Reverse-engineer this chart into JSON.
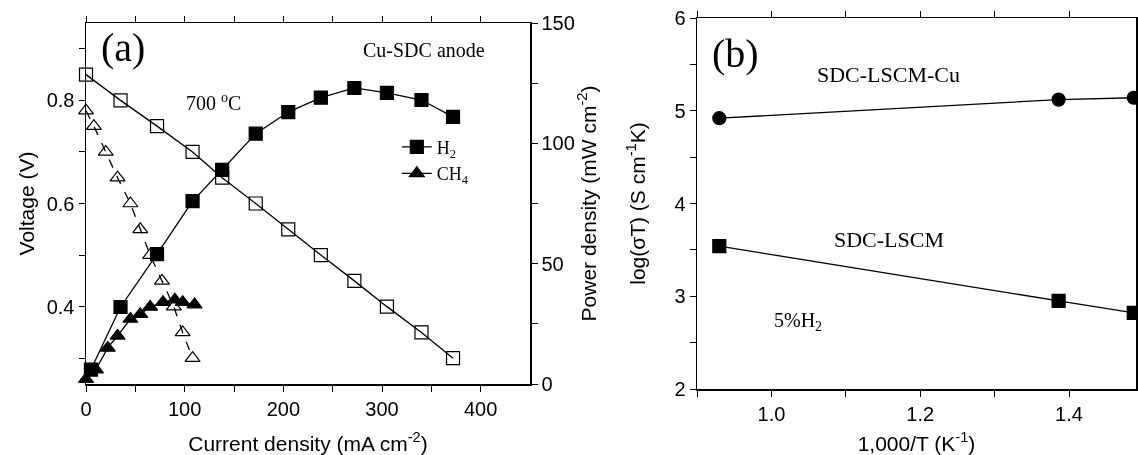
{
  "chart_data": [
    {
      "type": "line",
      "xlabel": "Current density (mA cm$^{-2}$)",
      "ylabel": "Voltage (V)",
      "y2label": "Power density (mW cm$^{-2}$)",
      "annotations": [
        "(a)",
        "700 $^{o}$C",
        "Cu-SDC anode"
      ],
      "xlim": [
        0,
        450
      ],
      "xticks": [
        0,
        {
          "value": 50,
          "label": null
        },
        100,
        {
          "value": 150,
          "label": null
        },
        200,
        {
          "value": 250,
          "label": null
        },
        300,
        {
          "value": 350,
          "label": null
        },
        400
      ],
      "ylim": [
        0.25,
        0.95
      ],
      "yticks": [
        {
          "value": 0.3,
          "label": null
        },
        0.4,
        {
          "value": 0.5,
          "label": null
        },
        0.6,
        {
          "value": 0.7,
          "label": null
        },
        0.8,
        {
          "value": 0.9,
          "label": null
        }
      ],
      "y2lim": [
        0,
        150
      ],
      "y2ticks": [
        0,
        {
          "value": 25,
          "label": null
        },
        50,
        {
          "value": 75,
          "label": null
        },
        100,
        {
          "value": 125,
          "label": null
        },
        150
      ],
      "grid": false,
      "legend": "right",
      "series": [
        {
          "color": "#000000",
          "marker": "square-open",
          "line_style": "solid",
          "axis": "y",
          "x": [
            0,
            35,
            72,
            108,
            138,
            172,
            205,
            238,
            272,
            305,
            340,
            372
          ],
          "values": [
            0.85,
            0.8,
            0.75,
            0.7,
            0.65,
            0.6,
            0.55,
            0.5,
            0.45,
            0.4,
            0.35,
            0.3
          ]
        },
        {
          "color": "#000000",
          "marker": "triangle-open",
          "line_style": "dashed",
          "axis": "y",
          "x": [
            0,
            8,
            20,
            32,
            45,
            55,
            65,
            77,
            89,
            98,
            108
          ],
          "values": [
            0.78,
            0.75,
            0.7,
            0.65,
            0.6,
            0.55,
            0.5,
            0.45,
            0.4,
            0.35,
            0.3
          ]
        },
        {
          "name": "H$_{2}$",
          "color": "#000000",
          "marker": "square",
          "line_style": "solid",
          "axis": "y2",
          "x": [
            5,
            35,
            72,
            108,
            138,
            172,
            205,
            238,
            272,
            305,
            340,
            372
          ],
          "values": [
            6,
            32,
            54,
            76,
            89,
            104,
            113,
            119,
            123,
            121,
            118,
            111
          ]
        },
        {
          "name": "CH$_{4}$",
          "color": "#000000",
          "marker": "triangle",
          "line_style": "solid",
          "axis": "y2",
          "x": [
            0,
            10,
            22,
            32,
            45,
            55,
            65,
            78,
            90,
            98,
            110
          ],
          "values": [
            2,
            6,
            15,
            20,
            27,
            29,
            32,
            34,
            35,
            34,
            33
          ]
        }
      ]
    },
    {
      "type": "line",
      "xlabel": "1,000/T (K$^{-1}$)",
      "ylabel": "log(σT) (S cm$^{-1}$K)",
      "annotations": [
        "(b)",
        "5%H$_{2}$"
      ],
      "xlim": [
        0.9,
        1.49
      ],
      "xticks": [
        {
          "value": 0.9,
          "label": null
        },
        {
          "value": 1.0,
          "label": "1.0"
        },
        {
          "value": 1.1,
          "label": null
        },
        1.2,
        {
          "value": 1.3,
          "label": null
        },
        1.4
      ],
      "ylim": [
        2,
        6
      ],
      "yticks": [
        2,
        {
          "value": 2.5,
          "label": null
        },
        3,
        {
          "value": 3.5,
          "label": null
        },
        4,
        {
          "value": 4.5,
          "label": null
        },
        5,
        {
          "value": 5.5,
          "label": null
        },
        6
      ],
      "grid": false,
      "legend": false,
      "series": [
        {
          "name": "SDC-LSCM-Cu",
          "color": "#000000",
          "marker": "circle",
          "line_style": "solid",
          "x": [
            0.93,
            1.386,
            1.487
          ],
          "values": [
            4.92,
            5.12,
            5.14
          ]
        },
        {
          "name": "SDC-LSCM",
          "color": "#000000",
          "marker": "square",
          "line_style": "solid",
          "x": [
            0.93,
            1.386,
            1.487
          ],
          "values": [
            3.54,
            2.95,
            2.82
          ]
        }
      ]
    }
  ]
}
